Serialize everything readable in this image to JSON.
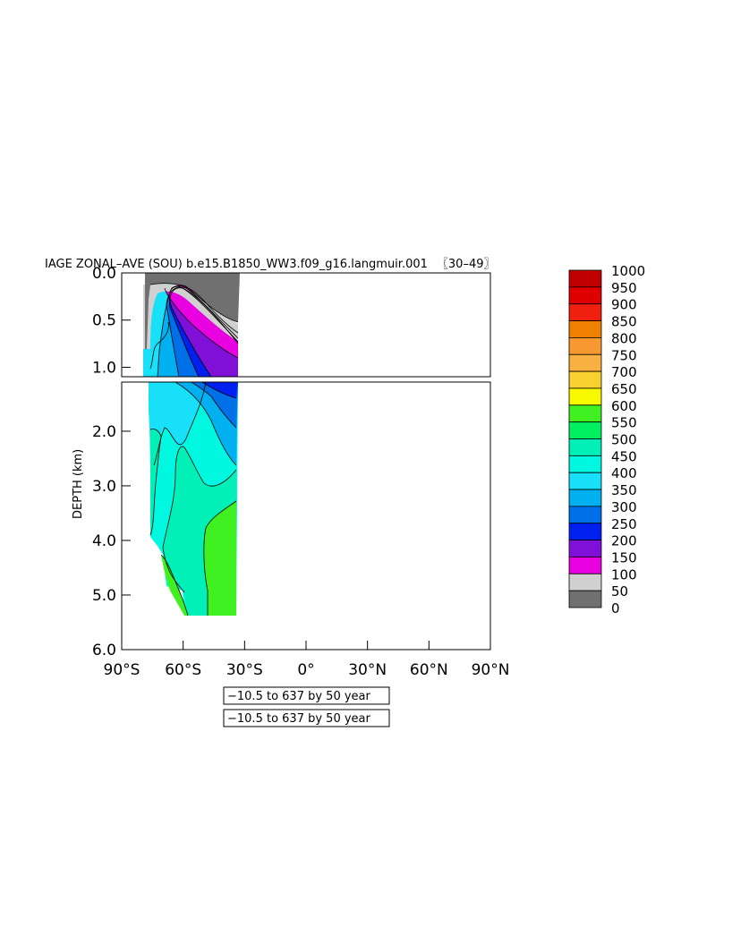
{
  "chart_data": {
    "type": "contour",
    "title": "IAGE ZONAL-AVE (SOU) b.e15.B1850_WW3.f09_g16.langmuir.001 〓0–49】",
    "title_text": "IAGE ZONAL–AVE (SOU) b.e15.B1850_WW3.f09_g16.langmuir.001",
    "title_years": "30–49",
    "ylabel": "DEPTH (km)",
    "xlabel": "",
    "x_ticks": [
      "90°S",
      "60°S",
      "30°S",
      "0°",
      "30°N",
      "60°N",
      "90°N"
    ],
    "x_range": [
      -90,
      90
    ],
    "upper_panel": {
      "y_ticks": [
        "0.0",
        "0.5",
        "1.0"
      ],
      "y_range": [
        0,
        1.1
      ]
    },
    "lower_panel": {
      "y_ticks": [
        "2.0",
        "3.0",
        "4.0",
        "5.0",
        "6.0"
      ],
      "y_range": [
        1.1,
        6.0
      ]
    },
    "contour_info": [
      "−10.5 to 637 by 50 year",
      "−10.5 to 637 by 50 year"
    ],
    "colorbar": {
      "levels": [
        "1000",
        "950",
        "900",
        "850",
        "800",
        "750",
        "700",
        "650",
        "600",
        "550",
        "500",
        "450",
        "400",
        "350",
        "300",
        "250",
        "200",
        "150",
        "100",
        "50",
        "0"
      ],
      "colors": [
        "#c00000",
        "#e00000",
        "#f02010",
        "#f08000",
        "#f89830",
        "#f8b040",
        "#f8d030",
        "#f8f800",
        "#40f020",
        "#00f060",
        "#00f0b8",
        "#00f8e0",
        "#18e0f8",
        "#00b0f0",
        "#0070e8",
        "#0020f0",
        "#8010d8",
        "#e800e0",
        "#d0d0d0",
        "#707070"
      ]
    }
  }
}
